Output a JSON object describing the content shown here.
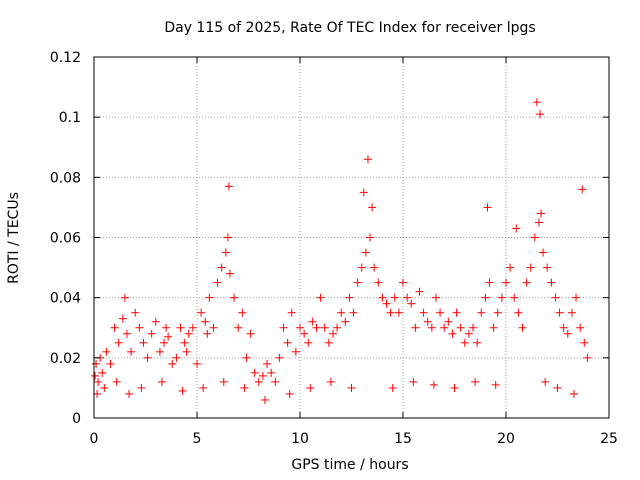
{
  "chart_data": {
    "type": "scatter",
    "title": "Day 115 of 2025, Rate Of TEC Index for receiver lpgs",
    "xlabel": "GPS time / hours",
    "ylabel": "ROTI / TECUs",
    "xlim": [
      0,
      25
    ],
    "ylim": [
      0,
      0.12
    ],
    "x_ticks": [
      "0",
      "5",
      "10",
      "15",
      "20",
      "25"
    ],
    "y_ticks": [
      "0",
      "0.02",
      "0.04",
      "0.06",
      "0.08",
      "0.1",
      "0.12"
    ],
    "grid": true,
    "marker": "+",
    "color": "#ff0000",
    "series": [
      {
        "x": [
          0.05,
          0.1,
          0.2,
          0.3,
          0.4,
          0.6,
          0.8,
          1.0,
          1.2,
          1.4,
          1.5,
          1.6,
          1.8,
          2.0,
          2.2,
          2.4,
          2.6,
          2.8,
          3.0,
          3.2,
          3.4,
          3.5,
          3.6,
          3.8,
          4.0,
          4.2,
          4.4,
          4.5,
          4.6,
          4.8,
          5.0,
          5.2,
          5.4,
          5.5,
          5.6,
          5.8,
          6.0,
          6.2,
          6.4,
          6.5,
          6.6,
          6.8,
          7.0,
          7.2,
          7.4,
          7.6,
          7.8,
          8.0,
          8.2,
          8.4,
          8.6,
          8.8,
          9.0,
          9.2,
          9.4,
          9.6,
          9.8,
          10.0,
          10.2,
          10.4,
          10.6,
          10.8,
          11.0,
          11.2,
          11.4,
          11.6,
          11.8,
          12.0,
          12.2,
          12.4,
          12.6,
          12.8,
          13.0,
          13.2,
          13.4,
          13.5,
          13.6,
          13.8,
          14.0,
          14.2,
          14.4,
          14.6,
          14.8,
          15.0,
          15.2,
          15.4,
          15.6,
          15.8,
          16.0,
          16.2,
          16.4,
          16.6,
          16.8,
          17.0,
          17.2,
          17.4,
          17.6,
          17.8,
          18.0,
          18.2,
          18.4,
          18.6,
          18.8,
          19.0,
          19.2,
          19.4,
          19.6,
          19.8,
          20.0,
          20.2,
          20.4,
          20.6,
          20.8,
          21.0,
          21.2,
          21.4,
          21.6,
          21.7,
          21.8,
          22.0,
          22.2,
          22.4,
          22.6,
          22.8,
          23.0,
          23.2,
          23.4,
          23.6,
          23.8,
          23.95,
          0.15,
          0.5,
          1.1,
          1.7,
          2.3,
          3.3,
          4.3,
          5.3,
          6.3,
          6.55,
          7.3,
          8.3,
          9.5,
          10.5,
          11.5,
          12.5,
          13.1,
          13.3,
          14.5,
          15.5,
          16.5,
          17.5,
          18.5,
          19.1,
          19.5,
          20.5,
          21.5,
          21.65,
          21.9,
          22.5,
          23.3,
          23.7
        ],
        "y": [
          0.014,
          0.018,
          0.012,
          0.02,
          0.015,
          0.022,
          0.018,
          0.03,
          0.025,
          0.033,
          0.04,
          0.028,
          0.022,
          0.035,
          0.03,
          0.025,
          0.02,
          0.028,
          0.032,
          0.022,
          0.025,
          0.03,
          0.027,
          0.018,
          0.02,
          0.03,
          0.025,
          0.022,
          0.028,
          0.03,
          0.018,
          0.035,
          0.032,
          0.028,
          0.04,
          0.03,
          0.045,
          0.05,
          0.055,
          0.06,
          0.048,
          0.04,
          0.03,
          0.035,
          0.02,
          0.028,
          0.015,
          0.012,
          0.014,
          0.018,
          0.015,
          0.012,
          0.02,
          0.03,
          0.025,
          0.035,
          0.022,
          0.03,
          0.028,
          0.025,
          0.032,
          0.03,
          0.04,
          0.03,
          0.025,
          0.028,
          0.03,
          0.035,
          0.032,
          0.04,
          0.035,
          0.045,
          0.05,
          0.055,
          0.06,
          0.07,
          0.05,
          0.045,
          0.04,
          0.038,
          0.035,
          0.04,
          0.035,
          0.045,
          0.04,
          0.038,
          0.03,
          0.042,
          0.035,
          0.032,
          0.03,
          0.04,
          0.035,
          0.03,
          0.032,
          0.028,
          0.035,
          0.03,
          0.025,
          0.028,
          0.03,
          0.025,
          0.035,
          0.04,
          0.045,
          0.03,
          0.035,
          0.04,
          0.045,
          0.05,
          0.04,
          0.035,
          0.03,
          0.045,
          0.05,
          0.06,
          0.065,
          0.068,
          0.055,
          0.05,
          0.045,
          0.04,
          0.035,
          0.03,
          0.028,
          0.035,
          0.04,
          0.03,
          0.025,
          0.02,
          0.008,
          0.01,
          0.012,
          0.008,
          0.01,
          0.012,
          0.009,
          0.01,
          0.012,
          0.077,
          0.01,
          0.006,
          0.008,
          0.01,
          0.012,
          0.01,
          0.075,
          0.086,
          0.01,
          0.012,
          0.011,
          0.01,
          0.012,
          0.07,
          0.011,
          0.063,
          0.105,
          0.101,
          0.012,
          0.01,
          0.008,
          0.076
        ]
      }
    ]
  }
}
